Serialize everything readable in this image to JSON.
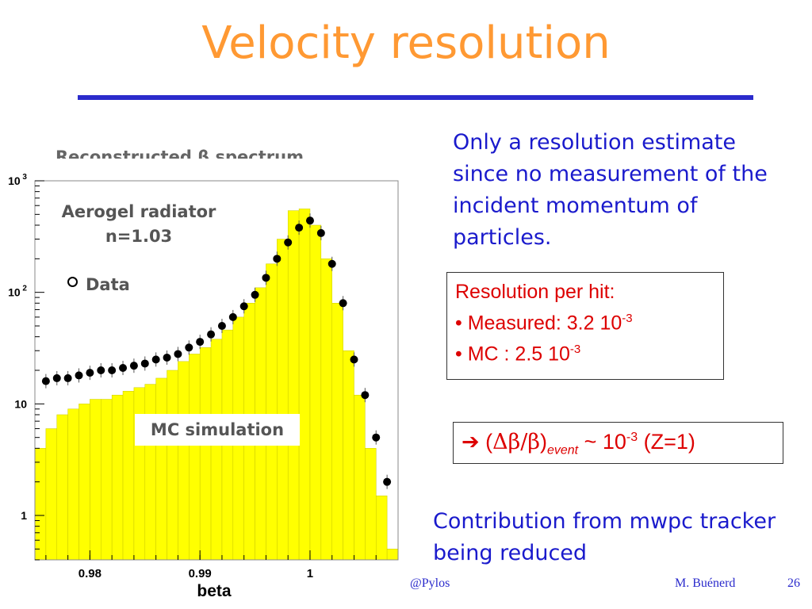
{
  "slide": {
    "title": "Velocity resolution",
    "footer_left": "@Pylos",
    "footer_author": "M. Buénerd",
    "page_number": "26",
    "accent_colors": {
      "title": "#ff9933",
      "text": "#1a1acc",
      "highlight": "#dd0000"
    }
  },
  "plot_labels": {
    "aerogel_line1": "Aerogel radiator",
    "aerogel_line2": "n=1.03",
    "data_legend": "Data",
    "mc_label": "MC simulation"
  },
  "notes": {
    "estimate": "Only a resolution estimate since no measurement of the incident momentum of particles.",
    "resolution_header": "Resolution per hit:",
    "measured_prefix": "• Measured:  3.2 10",
    "measured_exp": "-3",
    "mc_prefix": "•        MC  :  2.5 10",
    "mc_exp": "-3",
    "event_arrow": "➔",
    "event_open": " (",
    "event_ratio": "Δβ/β",
    "event_close": ")",
    "event_sub": "event",
    "event_mid": " ~ 10",
    "event_exp": "-3",
    "event_tail": " (Z=1)",
    "contribution": "Contribution from mwpc tracker being reduced"
  },
  "chart_data": {
    "type": "histogram",
    "title": "Reconstructed β spectrum",
    "xlabel": "beta",
    "ylabel": "",
    "yscale": "log",
    "xlim": [
      0.975,
      1.008
    ],
    "ylim": [
      0.4,
      1000
    ],
    "x_ticks": [
      0.98,
      0.99,
      1
    ],
    "x_tick_labels": [
      "0.98",
      "0.99",
      "1"
    ],
    "y_ticks": [
      1,
      10,
      100,
      1000
    ],
    "y_tick_labels": [
      "1",
      "10",
      "10 2",
      "10 3"
    ],
    "series": [
      {
        "name": "MC simulation",
        "style": "filled-histogram",
        "color": "#ffff00",
        "x": [
          0.9755,
          0.9765,
          0.9775,
          0.9785,
          0.9795,
          0.9805,
          0.9815,
          0.9825,
          0.9835,
          0.9845,
          0.9855,
          0.9865,
          0.9875,
          0.9885,
          0.9895,
          0.9905,
          0.9915,
          0.9925,
          0.9935,
          0.9945,
          0.9955,
          0.9965,
          0.9975,
          0.9985,
          0.9995,
          1.0005,
          1.0015,
          1.0025,
          1.0035,
          1.0045,
          1.0055,
          1.0065,
          1.0075
        ],
        "values": [
          4,
          6,
          8,
          9,
          10,
          11,
          11,
          12,
          13,
          14,
          15,
          17,
          20,
          24,
          28,
          32,
          38,
          46,
          60,
          80,
          110,
          180,
          300,
          540,
          560,
          400,
          200,
          80,
          30,
          12,
          4,
          1.5,
          0.5
        ]
      },
      {
        "name": "Data",
        "style": "markers",
        "color": "#000000",
        "x": [
          0.976,
          0.977,
          0.978,
          0.979,
          0.98,
          0.981,
          0.982,
          0.983,
          0.984,
          0.985,
          0.986,
          0.987,
          0.988,
          0.989,
          0.99,
          0.991,
          0.992,
          0.993,
          0.994,
          0.995,
          0.996,
          0.997,
          0.998,
          0.999,
          1.0,
          1.001,
          1.002,
          1.003,
          1.004,
          1.005,
          1.006,
          1.007
        ],
        "values": [
          16,
          17,
          17,
          18,
          19,
          20,
          20,
          21,
          22,
          23,
          25,
          26,
          28,
          32,
          36,
          42,
          50,
          60,
          75,
          95,
          135,
          200,
          280,
          380,
          440,
          340,
          180,
          80,
          25,
          12,
          5,
          2
        ]
      }
    ]
  }
}
